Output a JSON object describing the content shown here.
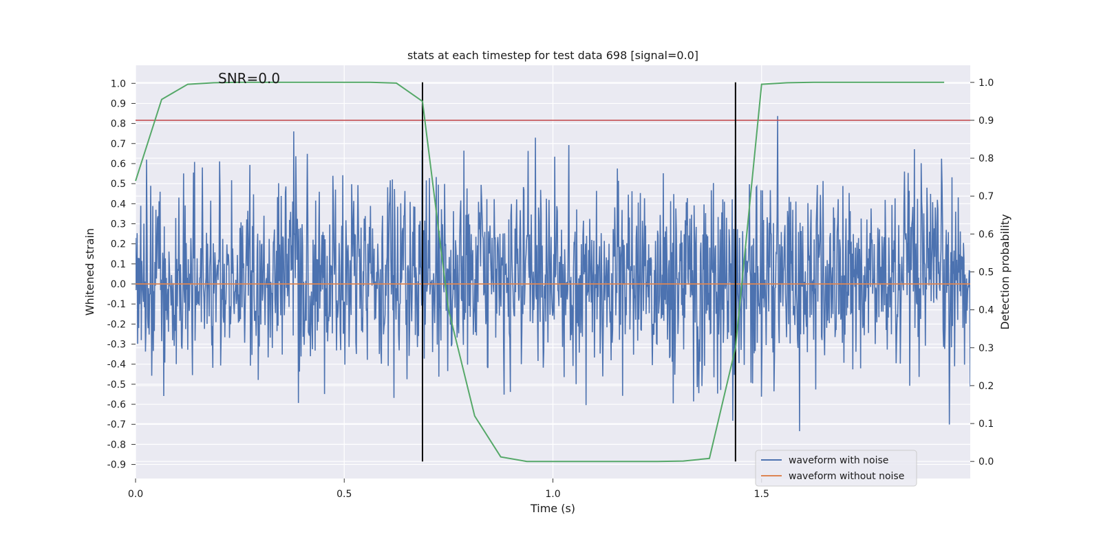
{
  "chart_data": {
    "type": "line",
    "title": "stats at each timestep for test data 698 [signal=0.0]",
    "annotation": "SNR=0.0",
    "xlabel": "Time (s)",
    "ylabel": "Whitened strain",
    "y2label": "Detection probability",
    "xlim": [
      0.0,
      2.0
    ],
    "ylim": [
      -0.97,
      1.09
    ],
    "y2lim": [
      -0.045,
      1.045
    ],
    "xticks": [
      "0.0",
      "0.5",
      "1.0",
      "1.5"
    ],
    "yticks": [
      "1.0",
      "0.9",
      "0.8",
      "0.7",
      "0.6",
      "0.5",
      "0.4",
      "0.3",
      "0.2",
      "0.1",
      "0.0",
      "-0.1",
      "-0.2",
      "-0.3",
      "-0.4",
      "-0.5",
      "-0.6",
      "-0.7",
      "-0.8",
      "-0.9"
    ],
    "y2ticks": [
      "1.0",
      "0.9",
      "0.8",
      "0.7",
      "0.6",
      "0.5",
      "0.4",
      "0.3",
      "0.2",
      "0.1",
      "0.0"
    ],
    "grid": true,
    "legend_position": "bottom-right",
    "colors": {
      "plot_bg": "#eaeaf2",
      "grid": "#ffffff",
      "noisy": "#4c72b0",
      "clean": "#dd8452",
      "probability": "#55a868",
      "threshold": "#c44e52",
      "markers": "#000000"
    },
    "series": [
      {
        "name": "waveform with noise",
        "axis": "left",
        "color": "#4c72b0",
        "description_stats": {
          "min": -0.87,
          "max": 1.0,
          "typical_range": [
            -0.6,
            0.6
          ]
        }
      },
      {
        "name": "waveform without noise",
        "axis": "left",
        "color": "#dd8452",
        "x": [
          0.0,
          2.0
        ],
        "y": [
          0.0,
          0.0
        ]
      },
      {
        "axis": "right",
        "color": "#55a868",
        "x": [
          0.0,
          0.0625,
          0.125,
          0.1875,
          0.25,
          0.3125,
          0.375,
          0.4375,
          0.5,
          0.5625,
          0.625,
          0.6875,
          0.75,
          0.8125,
          0.875,
          0.9375,
          1.0,
          1.0625,
          1.125,
          1.1875,
          1.25,
          1.3125,
          1.375,
          1.4375,
          1.5,
          1.5625,
          1.625,
          1.6875,
          1.75,
          1.8125,
          1.875,
          1.9375
        ],
        "y": [
          0.74,
          0.955,
          0.995,
          0.999,
          1.0,
          1.0,
          1.0,
          1.0,
          1.0,
          1.0,
          0.998,
          0.95,
          0.4,
          0.12,
          0.012,
          0.0,
          0.0,
          0.0,
          0.0,
          0.0,
          0.0,
          0.001,
          0.008,
          0.3,
          0.995,
          0.999,
          1.0,
          1.0,
          1.0,
          1.0,
          1.0,
          1.0
        ]
      }
    ],
    "threshold_line": {
      "axis": "right",
      "y": 0.9
    },
    "vertical_markers": [
      0.6875,
      1.4375
    ]
  }
}
